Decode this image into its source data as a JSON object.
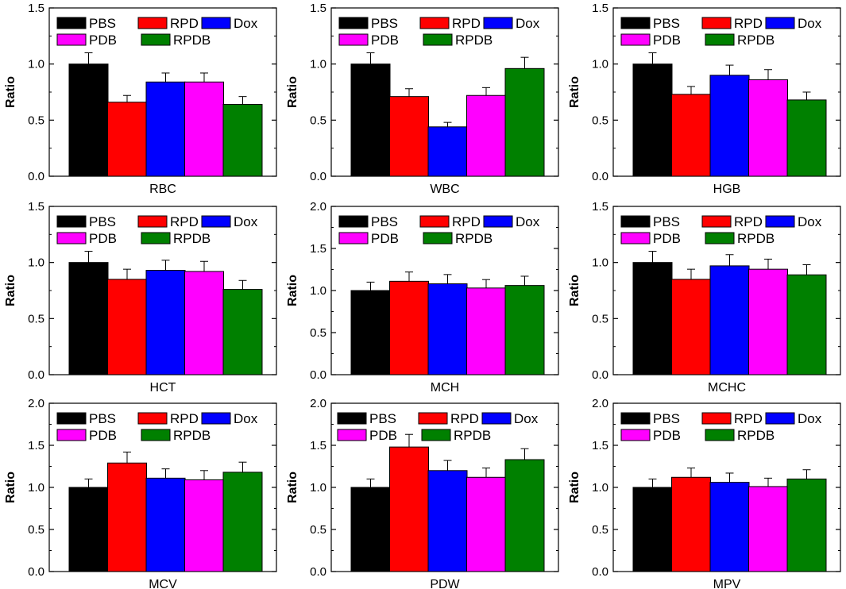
{
  "chart_data": [
    {
      "type": "bar",
      "title": "",
      "xlabel": "RBC",
      "ylabel": "Ratio",
      "ylim": [
        0,
        1.5
      ],
      "yticks": [
        "0.0",
        "0.5",
        "1.0",
        "1.5"
      ],
      "categories": [
        "PBS",
        "RPD",
        "Dox",
        "PDB",
        "RPDB"
      ],
      "values": [
        1.0,
        0.66,
        0.84,
        0.84,
        0.64
      ],
      "errors": [
        0.1,
        0.06,
        0.08,
        0.08,
        0.07
      ]
    },
    {
      "type": "bar",
      "title": "",
      "xlabel": "WBC",
      "ylabel": "Ratio",
      "ylim": [
        0,
        1.5
      ],
      "yticks": [
        "0.0",
        "0.5",
        "1.0",
        "1.5"
      ],
      "categories": [
        "PBS",
        "RPD",
        "Dox",
        "PDB",
        "RPDB"
      ],
      "values": [
        1.0,
        0.71,
        0.44,
        0.72,
        0.96
      ],
      "errors": [
        0.1,
        0.07,
        0.04,
        0.07,
        0.1
      ]
    },
    {
      "type": "bar",
      "title": "",
      "xlabel": "HGB",
      "ylabel": "Ratio",
      "ylim": [
        0,
        1.5
      ],
      "yticks": [
        "0.0",
        "0.5",
        "1.0",
        "1.5"
      ],
      "categories": [
        "PBS",
        "RPD",
        "Dox",
        "PDB",
        "RPDB"
      ],
      "values": [
        1.0,
        0.73,
        0.9,
        0.86,
        0.68
      ],
      "errors": [
        0.1,
        0.07,
        0.09,
        0.09,
        0.07
      ]
    },
    {
      "type": "bar",
      "title": "",
      "xlabel": "HCT",
      "ylabel": "Ratio",
      "ylim": [
        0,
        1.5
      ],
      "yticks": [
        "0.0",
        "0.5",
        "1.0",
        "1.5"
      ],
      "categories": [
        "PBS",
        "RPD",
        "Dox",
        "PDB",
        "RPDB"
      ],
      "values": [
        1.0,
        0.85,
        0.93,
        0.92,
        0.76
      ],
      "errors": [
        0.1,
        0.09,
        0.09,
        0.09,
        0.08
      ]
    },
    {
      "type": "bar",
      "title": "",
      "xlabel": "MCH",
      "ylabel": "Ratio",
      "ylim": [
        0,
        2.0
      ],
      "yticks": [
        "0.0",
        "0.5",
        "1.0",
        "1.5",
        "2.0"
      ],
      "categories": [
        "PBS",
        "RPD",
        "Dox",
        "PDB",
        "RPDB"
      ],
      "values": [
        1.0,
        1.11,
        1.08,
        1.03,
        1.06
      ],
      "errors": [
        0.1,
        0.11,
        0.11,
        0.1,
        0.11
      ]
    },
    {
      "type": "bar",
      "title": "",
      "xlabel": "MCHC",
      "ylabel": "Ratio",
      "ylim": [
        0,
        1.5
      ],
      "yticks": [
        "0.0",
        "0.5",
        "1.0",
        "1.5"
      ],
      "categories": [
        "PBS",
        "RPD",
        "Dox",
        "PDB",
        "RPDB"
      ],
      "values": [
        1.0,
        0.85,
        0.97,
        0.94,
        0.89
      ],
      "errors": [
        0.1,
        0.09,
        0.1,
        0.09,
        0.09
      ]
    },
    {
      "type": "bar",
      "title": "",
      "xlabel": "MCV",
      "ylabel": "Ratio",
      "ylim": [
        0,
        2.0
      ],
      "yticks": [
        "0.0",
        "0.5",
        "1.0",
        "1.5",
        "2.0"
      ],
      "categories": [
        "PBS",
        "RPD",
        "Dox",
        "PDB",
        "RPDB"
      ],
      "values": [
        1.0,
        1.29,
        1.11,
        1.09,
        1.18
      ],
      "errors": [
        0.1,
        0.13,
        0.11,
        0.11,
        0.12
      ]
    },
    {
      "type": "bar",
      "title": "",
      "xlabel": "PDW",
      "ylabel": "Ratio",
      "ylim": [
        0,
        2.0
      ],
      "yticks": [
        "0.0",
        "0.5",
        "1.0",
        "1.5",
        "2.0"
      ],
      "categories": [
        "PBS",
        "RPD",
        "Dox",
        "PDB",
        "RPDB"
      ],
      "values": [
        1.0,
        1.48,
        1.2,
        1.12,
        1.33
      ],
      "errors": [
        0.1,
        0.15,
        0.12,
        0.11,
        0.13
      ]
    },
    {
      "type": "bar",
      "title": "",
      "xlabel": "MPV",
      "ylabel": "Ratio",
      "ylim": [
        0,
        2.0
      ],
      "yticks": [
        "0.0",
        "0.5",
        "1.0",
        "1.5",
        "2.0"
      ],
      "categories": [
        "PBS",
        "RPD",
        "Dox",
        "PDB",
        "RPDB"
      ],
      "values": [
        1.0,
        1.12,
        1.06,
        1.01,
        1.1
      ],
      "errors": [
        0.1,
        0.11,
        0.11,
        0.1,
        0.11
      ]
    }
  ],
  "legend": {
    "entries": [
      "PBS",
      "RPD",
      "Dox",
      "PDB",
      "RPDB"
    ]
  },
  "colors": {
    "PBS": "#000000",
    "RPD": "#ff0000",
    "Dox": "#0000ff",
    "PDB": "#ff00ff",
    "RPDB": "#008000"
  }
}
